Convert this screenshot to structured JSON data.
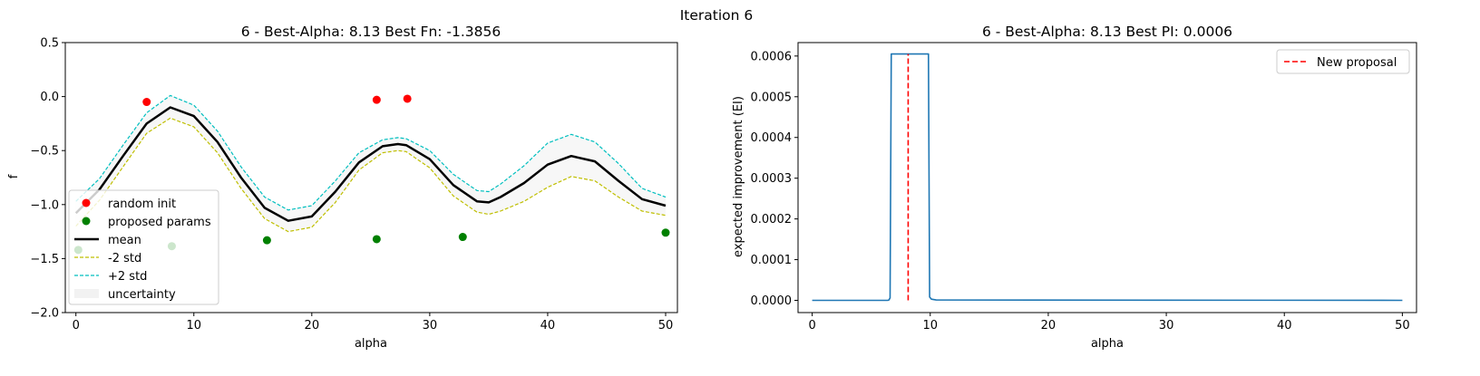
{
  "figure": {
    "suptitle": "Iteration 6"
  },
  "chart_data": [
    {
      "type": "line",
      "title": "6 - Best-Alpha: 8.13 Best Fn: -1.3856",
      "xlabel": "alpha",
      "ylabel": "f",
      "xlim": [
        -0.9,
        51
      ],
      "ylim": [
        -2.0,
        0.5
      ],
      "xticks": [
        0,
        10,
        20,
        30,
        40,
        50
      ],
      "yticks": [
        -2.0,
        -1.5,
        -1.0,
        -0.5,
        0.0,
        0.5
      ],
      "xtick_labels": [
        "0",
        "10",
        "20",
        "30",
        "40",
        "50"
      ],
      "ytick_labels": [
        "−2.0",
        "−1.5",
        "−1.0",
        "−0.5",
        "0.0",
        "0.5"
      ],
      "grid": false,
      "legend_position": "lower-left",
      "random_init": {
        "name": "random init",
        "color": "#ff0000",
        "x": [
          6.0,
          25.5,
          28.1
        ],
        "y": [
          -0.05,
          -0.03,
          -0.02
        ]
      },
      "proposed_params": {
        "name": "proposed params",
        "color": "#008000",
        "x": [
          0.2,
          8.13,
          16.2,
          25.5,
          32.8,
          50.0
        ],
        "y": [
          -1.42,
          -1.385,
          -1.33,
          -1.32,
          -1.3,
          -1.26
        ]
      },
      "mean": {
        "name": "mean",
        "color": "#000000",
        "x": [
          0,
          2,
          4,
          6,
          8,
          10,
          12,
          14,
          16,
          18,
          20,
          22,
          24,
          26,
          27.3,
          28,
          30,
          32,
          34,
          35,
          36,
          38,
          40,
          42,
          44,
          46,
          48,
          50
        ],
        "y": [
          -1.08,
          -0.86,
          -0.55,
          -0.25,
          -0.1,
          -0.18,
          -0.42,
          -0.75,
          -1.03,
          -1.15,
          -1.11,
          -0.88,
          -0.61,
          -0.46,
          -0.44,
          -0.45,
          -0.58,
          -0.82,
          -0.97,
          -0.98,
          -0.93,
          -0.8,
          -0.63,
          -0.55,
          -0.6,
          -0.78,
          -0.95,
          -1.01
        ]
      },
      "minus_2_std": {
        "name": "-2 std",
        "color": "#bfbf00",
        "x": [
          0,
          2,
          4,
          6,
          8,
          10,
          12,
          14,
          16,
          18,
          20,
          22,
          24,
          26,
          27.3,
          28,
          30,
          32,
          34,
          35,
          36,
          38,
          40,
          42,
          44,
          46,
          48,
          50
        ],
        "y": [
          -1.2,
          -0.96,
          -0.65,
          -0.34,
          -0.2,
          -0.28,
          -0.52,
          -0.85,
          -1.13,
          -1.25,
          -1.21,
          -0.98,
          -0.68,
          -0.52,
          -0.5,
          -0.51,
          -0.66,
          -0.92,
          -1.07,
          -1.09,
          -1.06,
          -0.97,
          -0.84,
          -0.74,
          -0.78,
          -0.93,
          -1.06,
          -1.1
        ]
      },
      "plus_2_std": {
        "name": "+2 std",
        "color": "#00bfbf",
        "x": [
          0,
          2,
          4,
          6,
          8,
          10,
          12,
          14,
          16,
          18,
          20,
          22,
          24,
          26,
          27.3,
          28,
          30,
          32,
          34,
          35,
          36,
          38,
          40,
          42,
          44,
          46,
          48,
          50
        ],
        "y": [
          -0.97,
          -0.76,
          -0.45,
          -0.15,
          0.01,
          -0.08,
          -0.32,
          -0.65,
          -0.93,
          -1.05,
          -1.01,
          -0.78,
          -0.52,
          -0.4,
          -0.38,
          -0.39,
          -0.5,
          -0.72,
          -0.87,
          -0.88,
          -0.81,
          -0.64,
          -0.43,
          -0.35,
          -0.42,
          -0.62,
          -0.85,
          -0.93
        ]
      },
      "uncertainty": {
        "name": "uncertainty",
        "color": "#f2f2f2"
      }
    },
    {
      "type": "line",
      "title": "6 - Best-Alpha: 8.13 Best PI: 0.0006",
      "xlabel": "alpha",
      "ylabel": "expected improvement (EI)",
      "xlim": [
        -1.2,
        51.2
      ],
      "ylim": [
        -3e-05,
        0.000633
      ],
      "xticks": [
        0,
        10,
        20,
        30,
        40,
        50
      ],
      "yticks": [
        0.0,
        0.0001,
        0.0002,
        0.0003,
        0.0004,
        0.0005,
        0.0006
      ],
      "xtick_labels": [
        "0",
        "10",
        "20",
        "30",
        "40",
        "50"
      ],
      "ytick_labels": [
        "0.0000",
        "0.0001",
        "0.0002",
        "0.0003",
        "0.0004",
        "0.0005",
        "0.0006"
      ],
      "grid": false,
      "legend_position": "upper-right",
      "series": [
        {
          "color": "#1f77b4",
          "x": [
            0,
            6.4,
            6.5,
            6.6,
            6.7,
            6.75,
            9.75,
            9.85,
            9.95,
            10.1,
            10.5,
            50
          ],
          "y": [
            0.0,
            0.0,
            1e-06,
            6e-06,
            0.000605,
            0.000605,
            0.000605,
            0.000605,
            8e-06,
            3e-06,
            1e-06,
            0.0
          ]
        }
      ],
      "new_proposal": {
        "name": "New proposal",
        "color": "#ff0000",
        "x": 8.13,
        "y": [
          0.0,
          0.000605
        ]
      }
    }
  ]
}
